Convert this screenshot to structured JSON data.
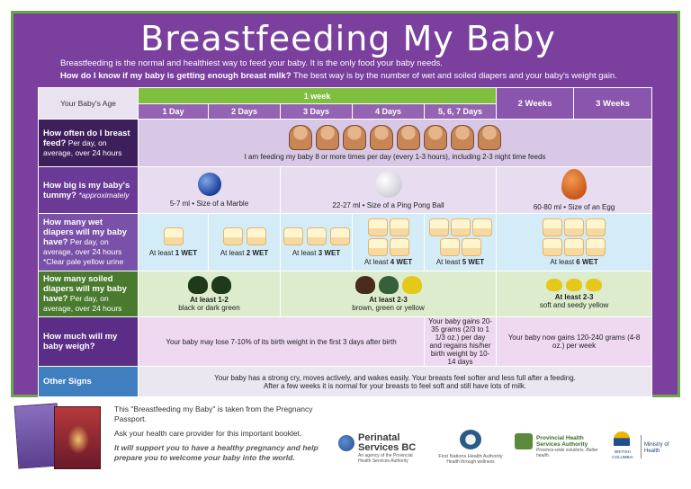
{
  "title": "Breastfeeding My Baby",
  "intro": {
    "line1": "Breastfeeding is the normal and healthiest way to feed your baby. It is the only food your baby needs.",
    "question": "How do I know if my baby is getting enough breast milk?",
    "line2": " The best way is by the number of wet and soiled diapers and your baby's weight gain."
  },
  "header": {
    "age_label": "Your Baby's Age",
    "week1": "1 week",
    "days": [
      "1 Day",
      "2 Days",
      "3 Days",
      "4 Days",
      "5, 6, 7 Days"
    ],
    "weeks2": "2 Weeks",
    "weeks3": "3 Weeks"
  },
  "rows": {
    "feed": {
      "label_bold": "How often do I breast feed?",
      "label_rest": " Per day, on average, over 24 hours",
      "note": "I am feeding my baby 8 or more times per day (every 1-3 hours), including 2-3 night time feeds",
      "icon": "breastfeeding-mother-icon"
    },
    "tummy": {
      "label_bold": "How big is my baby's tummy?",
      "label_rest": " *approximately",
      "marble": "5-7 ml • Size of a Marble",
      "ppball": "22-27 ml • Size of a Ping Pong Ball",
      "egg": "60-80 ml • Size of an Egg"
    },
    "wet": {
      "label_bold": "How many wet diapers will my baby have?",
      "label_rest": " Per day, on average, over 24 hours",
      "label_note": "*Clear pale yellow urine",
      "cells": [
        {
          "prefix": "At least ",
          "count": "1 WET"
        },
        {
          "prefix": "At least ",
          "count": "2 WET"
        },
        {
          "prefix": "At least ",
          "count": "3 WET"
        },
        {
          "prefix": "At least ",
          "count": "4 WET"
        },
        {
          "prefix": "At least ",
          "count": "5 WET"
        },
        {
          "prefix": "At least ",
          "count": "6 WET"
        }
      ]
    },
    "soiled": {
      "label_bold": "How many soiled diapers will my baby have?",
      "label_rest": " Per day, on average, over 24 hours",
      "c1_count": "At least 1-2",
      "c1_desc": "black or dark green",
      "c2_count": "At least 2-3",
      "c2_desc": "brown, green or yellow",
      "c3_count": "At least 2-3",
      "c3_desc": "soft and seedy yellow"
    },
    "weight": {
      "label_bold": "How much will my baby weigh?",
      "c1": "Your baby may lose 7-10% of its birth weight in the first 3 days after birth",
      "c2": "Your baby gains 20-35 grams (2/3 to 1 1/3 oz.) per day and regains his/her birth weight by 10-14 days",
      "c3": "Your baby now gains 120-240 grams (4-8 oz.) per week"
    },
    "other": {
      "label_bold": "Other Signs",
      "line1": "Your baby has a strong cry, moves actively, and wakes easily. Your breasts feel softer and less full after a feeding.",
      "line2": "After a few weeks it is normal for your breasts to feel soft and still have lots of milk."
    }
  },
  "footer": {
    "p1": "This \"Breastfeeding my Baby\" is taken from the Pregnancy Passport.",
    "p2": "Ask your health care provider for this important booklet.",
    "p3": "It will support you to have a healthy pregnancy and help prepare you to welcome your baby into the world."
  },
  "logos": {
    "perinatal": "Perinatal Services BC",
    "perinatal_sub": "An agency of the Provincial Health Services Authority",
    "fnha": "First Nations Health Authority",
    "fnha_sub": "Health through wellness",
    "phsa": "Provincial Health Services Authority",
    "phsa_sub": "Province-wide solutions. Better health.",
    "bc": "BRITISH COLUMBIA",
    "ministry": "Ministry of Health"
  },
  "colors": {
    "poster_purple": "#7b3f9e",
    "border_green": "#6aa84f",
    "week_green": "#7fbf3f"
  }
}
